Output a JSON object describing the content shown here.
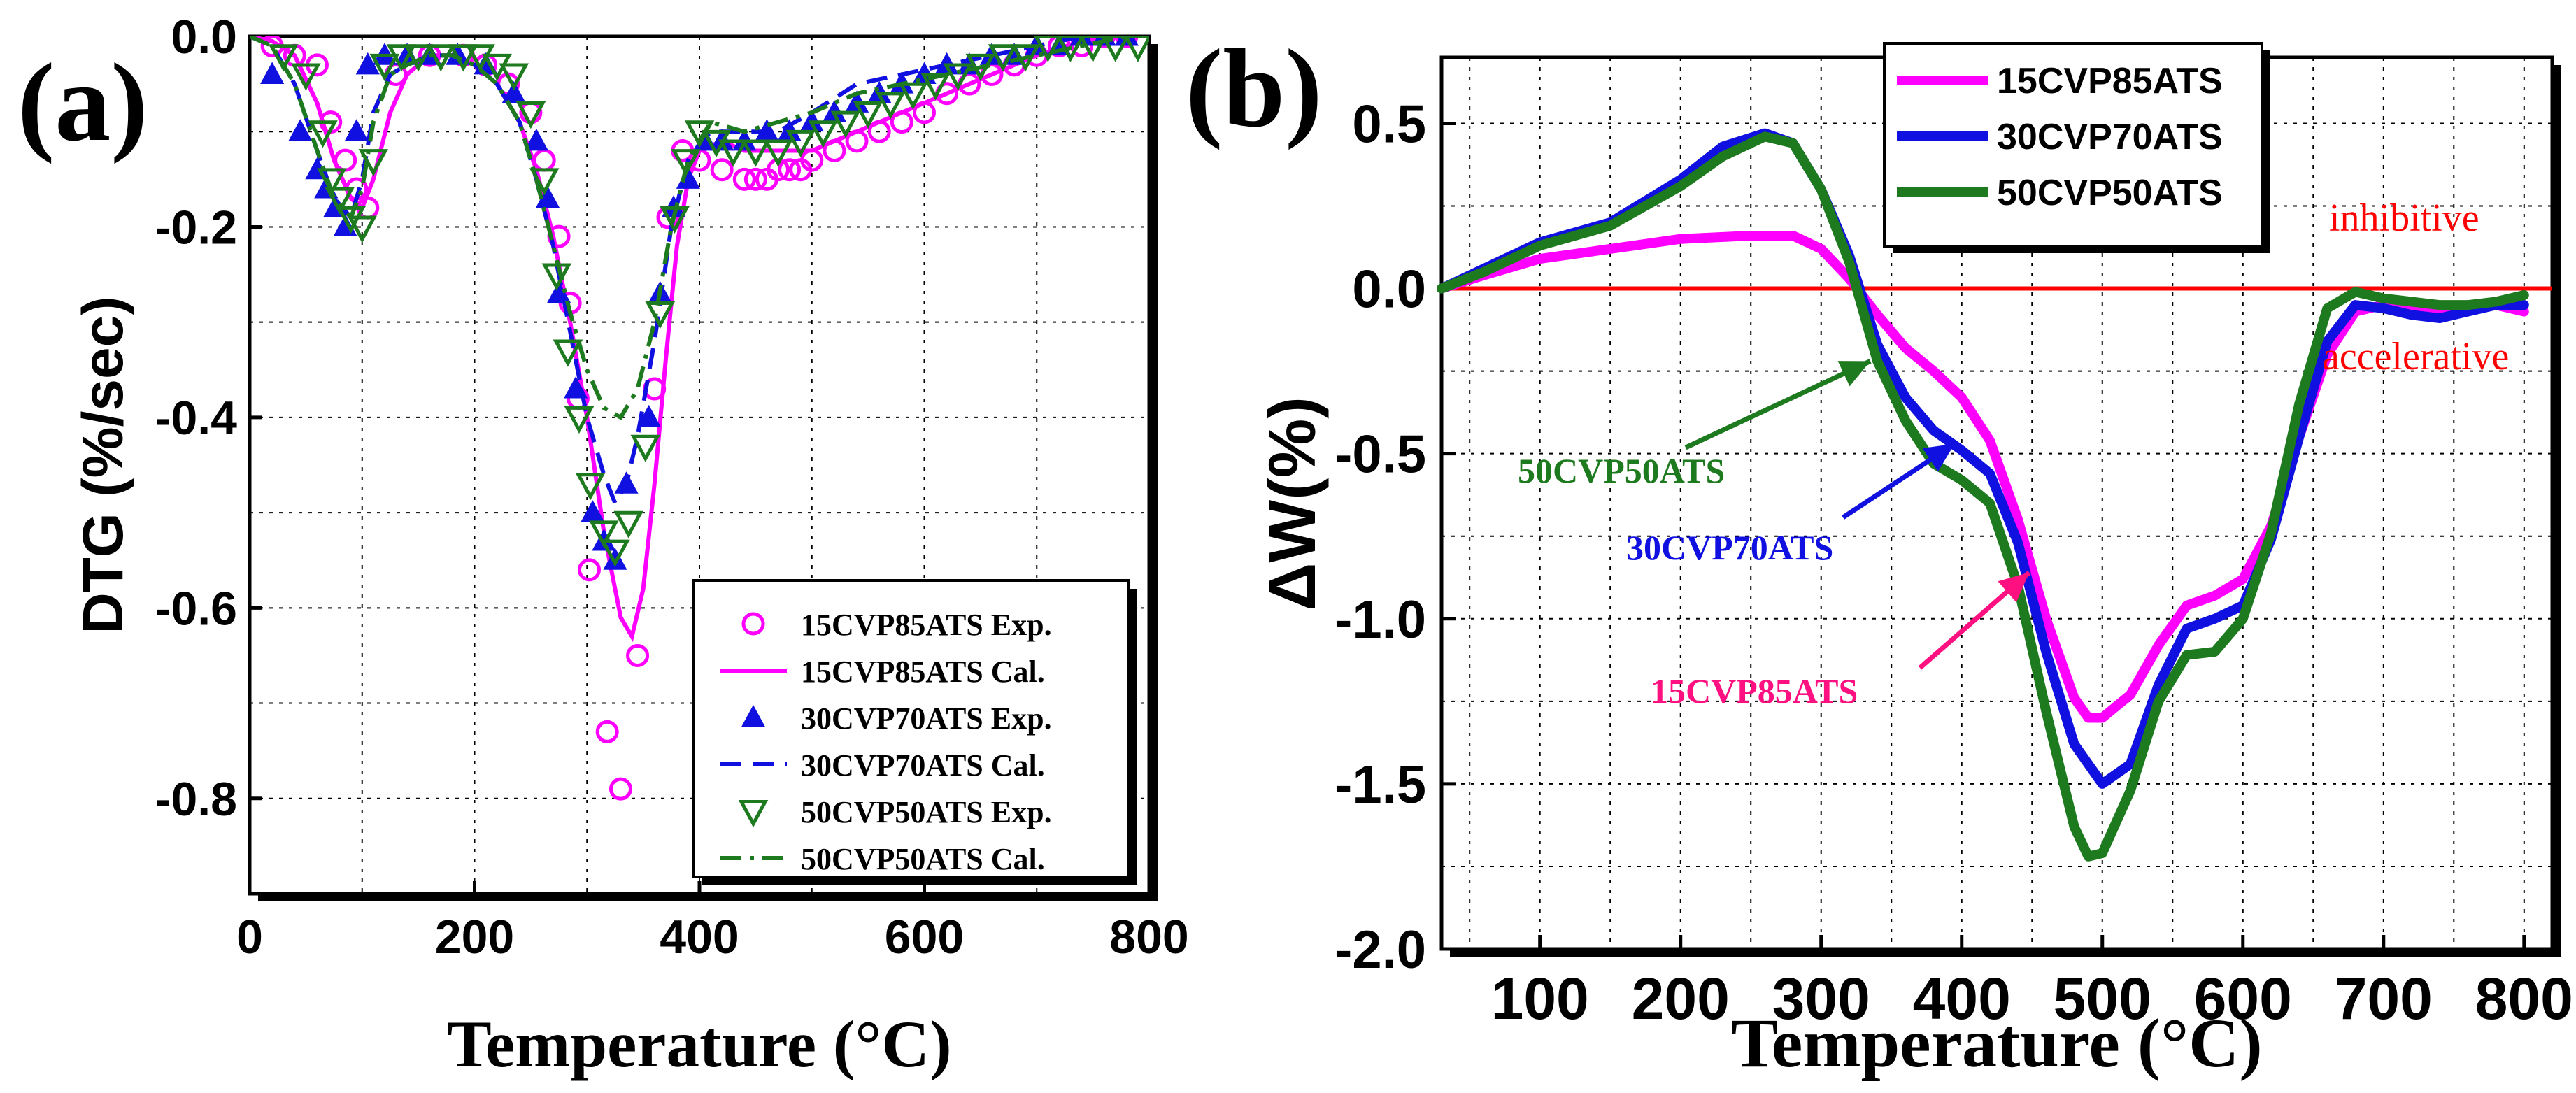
{
  "colors": {
    "magenta": "#ff00ff",
    "blue": "#1010e0",
    "green": "#1e7a1e",
    "red": "#ff0000",
    "pink": "#ff1080"
  },
  "chart_data": [
    {
      "panel_label": "(a)",
      "type": "line",
      "title": "",
      "xlabel": "Temperature (°C)",
      "ylabel": "DTG (%/sec)",
      "xlim": [
        0,
        800
      ],
      "ylim": [
        -0.9,
        0
      ],
      "xticks": [
        "0",
        "200",
        "400",
        "600",
        "800"
      ],
      "yticks": [
        "0.0",
        "-0.2",
        "-0.4",
        "-0.6",
        "-0.8"
      ],
      "legend": "bottom-right",
      "series": [
        {
          "name": "15CVP85ATS Exp.",
          "style": "open-circle",
          "color": "#ff00ff",
          "x": [
            20,
            40,
            60,
            72,
            85,
            95,
            105,
            130,
            160,
            190,
            210,
            230,
            250,
            262,
            275,
            285,
            292,
            302,
            318,
            330,
            345,
            360,
            372,
            385,
            400,
            420,
            440,
            450,
            460,
            470,
            480,
            490,
            500,
            520,
            540,
            560,
            580,
            600,
            620,
            640,
            660,
            680,
            700,
            720,
            740,
            760,
            780
          ],
          "y": [
            -0.01,
            -0.02,
            -0.03,
            -0.09,
            -0.13,
            -0.16,
            -0.18,
            -0.04,
            -0.02,
            -0.02,
            -0.03,
            -0.05,
            -0.08,
            -0.13,
            -0.21,
            -0.28,
            -0.38,
            -0.56,
            -0.73,
            -0.79,
            -0.65,
            -0.37,
            -0.19,
            -0.12,
            -0.13,
            -0.14,
            -0.15,
            -0.15,
            -0.15,
            -0.14,
            -0.14,
            -0.14,
            -0.13,
            -0.12,
            -0.11,
            -0.1,
            -0.09,
            -0.08,
            -0.06,
            -0.05,
            -0.04,
            -0.03,
            -0.02,
            -0.01,
            -0.01,
            0,
            0
          ]
        },
        {
          "name": "15CVP85ATS Cal.",
          "style": "solid",
          "color": "#ff00ff",
          "x": [
            0,
            20,
            40,
            60,
            75,
            90,
            100,
            110,
            125,
            140,
            160,
            180,
            200,
            220,
            240,
            255,
            270,
            285,
            300,
            315,
            330,
            340,
            350,
            360,
            370,
            380,
            390,
            400,
            420,
            440,
            460,
            480,
            500,
            540,
            580,
            620,
            660,
            700,
            740,
            780,
            800
          ],
          "y": [
            0,
            -0.005,
            -0.02,
            -0.07,
            -0.13,
            -0.17,
            -0.18,
            -0.15,
            -0.08,
            -0.04,
            -0.02,
            -0.02,
            -0.03,
            -0.05,
            -0.09,
            -0.14,
            -0.21,
            -0.3,
            -0.4,
            -0.52,
            -0.61,
            -0.63,
            -0.58,
            -0.47,
            -0.34,
            -0.22,
            -0.15,
            -0.12,
            -0.11,
            -0.12,
            -0.12,
            -0.12,
            -0.12,
            -0.1,
            -0.08,
            -0.06,
            -0.04,
            -0.02,
            -0.005,
            0,
            0
          ]
        },
        {
          "name": "30CVP70ATS Exp.",
          "style": "filled-triangle-up",
          "color": "#1010e0",
          "x": [
            20,
            45,
            60,
            68,
            76,
            85,
            95,
            105,
            120,
            140,
            160,
            185,
            210,
            235,
            255,
            265,
            275,
            290,
            305,
            315,
            325,
            335,
            355,
            365,
            377,
            390,
            405,
            420,
            440,
            460,
            480,
            500,
            520,
            540,
            560,
            580,
            600,
            620,
            640,
            660,
            680,
            700,
            720,
            740,
            760,
            780
          ],
          "y": [
            -0.04,
            -0.1,
            -0.14,
            -0.16,
            -0.18,
            -0.2,
            -0.1,
            -0.03,
            -0.02,
            -0.02,
            -0.02,
            -0.02,
            -0.03,
            -0.06,
            -0.11,
            -0.17,
            -0.27,
            -0.37,
            -0.5,
            -0.53,
            -0.55,
            -0.47,
            -0.4,
            -0.27,
            -0.18,
            -0.15,
            -0.11,
            -0.11,
            -0.11,
            -0.1,
            -0.1,
            -0.09,
            -0.08,
            -0.07,
            -0.06,
            -0.05,
            -0.04,
            -0.03,
            -0.03,
            -0.02,
            -0.02,
            -0.01,
            -0.01,
            0,
            0,
            0
          ]
        },
        {
          "name": "30CVP70ATS Cal.",
          "style": "dashed",
          "color": "#1010e0",
          "x": [
            0,
            20,
            40,
            60,
            75,
            90,
            100,
            110,
            125,
            140,
            160,
            180,
            200,
            220,
            240,
            255,
            270,
            285,
            300,
            315,
            325,
            335,
            345,
            360,
            375,
            390,
            410,
            440,
            470,
            500,
            540,
            580,
            620,
            660,
            700,
            740,
            780,
            800
          ],
          "y": [
            0,
            -0.01,
            -0.05,
            -0.12,
            -0.17,
            -0.19,
            -0.15,
            -0.08,
            -0.04,
            -0.03,
            -0.02,
            -0.02,
            -0.03,
            -0.05,
            -0.09,
            -0.15,
            -0.22,
            -0.31,
            -0.4,
            -0.46,
            -0.49,
            -0.47,
            -0.42,
            -0.32,
            -0.2,
            -0.13,
            -0.1,
            -0.1,
            -0.1,
            -0.08,
            -0.05,
            -0.04,
            -0.03,
            -0.02,
            -0.01,
            0,
            0,
            0
          ]
        },
        {
          "name": "50CVP50ATS Exp.",
          "style": "open-triangle-down",
          "color": "#1e7a1e",
          "x": [
            30,
            50,
            65,
            73,
            80,
            90,
            100,
            110,
            120,
            135,
            150,
            170,
            190,
            205,
            220,
            235,
            250,
            262,
            273,
            283,
            293,
            303,
            315,
            325,
            337,
            352,
            365,
            378,
            388,
            400,
            415,
            430,
            450,
            470,
            490,
            510,
            530,
            550,
            570,
            590,
            610,
            630,
            650,
            670,
            690,
            710,
            730,
            750,
            770,
            790
          ],
          "y": [
            -0.02,
            -0.04,
            -0.1,
            -0.15,
            -0.17,
            -0.19,
            -0.2,
            -0.13,
            -0.03,
            -0.02,
            -0.02,
            -0.02,
            -0.02,
            -0.02,
            -0.03,
            -0.04,
            -0.08,
            -0.15,
            -0.25,
            -0.33,
            -0.4,
            -0.47,
            -0.52,
            -0.54,
            -0.51,
            -0.43,
            -0.29,
            -0.19,
            -0.13,
            -0.1,
            -0.11,
            -0.12,
            -0.12,
            -0.12,
            -0.11,
            -0.1,
            -0.09,
            -0.08,
            -0.07,
            -0.06,
            -0.05,
            -0.04,
            -0.03,
            -0.02,
            -0.02,
            -0.01,
            -0.01,
            -0.01,
            -0.01,
            -0.01
          ]
        },
        {
          "name": "50CVP50ATS Cal.",
          "style": "dash-dot",
          "color": "#1e7a1e",
          "x": [
            0,
            20,
            40,
            60,
            75,
            90,
            100,
            110,
            125,
            140,
            160,
            180,
            200,
            220,
            240,
            255,
            270,
            285,
            300,
            315,
            330,
            345,
            360,
            375,
            390,
            410,
            440,
            470,
            500,
            540,
            580,
            620,
            660,
            700,
            740,
            780,
            800
          ],
          "y": [
            0,
            -0.01,
            -0.05,
            -0.12,
            -0.17,
            -0.19,
            -0.16,
            -0.09,
            -0.04,
            -0.03,
            -0.02,
            -0.02,
            -0.03,
            -0.05,
            -0.09,
            -0.15,
            -0.22,
            -0.29,
            -0.35,
            -0.39,
            -0.4,
            -0.37,
            -0.3,
            -0.2,
            -0.13,
            -0.09,
            -0.1,
            -0.09,
            -0.08,
            -0.06,
            -0.05,
            -0.04,
            -0.03,
            -0.02,
            -0.01,
            0,
            0
          ]
        }
      ]
    },
    {
      "panel_label": "(b)",
      "type": "line",
      "title": "",
      "xlabel": "Temperature (°C)",
      "ylabel": "ΔW(%)",
      "xlim": [
        30,
        820
      ],
      "ylim": [
        -2.0,
        0.7
      ],
      "xticks": [
        "100",
        "200",
        "300",
        "400",
        "500",
        "600",
        "700",
        "800"
      ],
      "yticks": [
        "0.5",
        "0.0",
        "-0.5",
        "-1.0",
        "-1.5",
        "-2.0"
      ],
      "legend": "top-center",
      "series": [
        {
          "name": "15CVP85ATS",
          "color": "#ff00ff",
          "x": [
            30,
            60,
            100,
            150,
            200,
            250,
            280,
            300,
            320,
            340,
            360,
            380,
            400,
            420,
            440,
            460,
            480,
            490,
            500,
            520,
            540,
            560,
            580,
            600,
            620,
            640,
            660,
            680,
            700,
            720,
            740,
            760,
            780,
            800
          ],
          "y": [
            0,
            0.04,
            0.09,
            0.12,
            0.15,
            0.16,
            0.16,
            0.12,
            0.03,
            -0.08,
            -0.18,
            -0.25,
            -0.33,
            -0.46,
            -0.7,
            -1.0,
            -1.24,
            -1.3,
            -1.3,
            -1.23,
            -1.08,
            -0.96,
            -0.93,
            -0.88,
            -0.72,
            -0.45,
            -0.2,
            -0.07,
            -0.05,
            -0.06,
            -0.07,
            -0.06,
            -0.05,
            -0.07
          ]
        },
        {
          "name": "30CVP70ATS",
          "color": "#1010e0",
          "x": [
            30,
            60,
            100,
            150,
            200,
            230,
            260,
            280,
            300,
            320,
            340,
            360,
            380,
            400,
            420,
            440,
            460,
            480,
            500,
            520,
            540,
            560,
            580,
            600,
            620,
            640,
            660,
            680,
            700,
            720,
            740,
            760,
            780,
            800
          ],
          "y": [
            0,
            0.06,
            0.14,
            0.2,
            0.33,
            0.43,
            0.47,
            0.44,
            0.3,
            0.1,
            -0.17,
            -0.33,
            -0.43,
            -0.49,
            -0.56,
            -0.77,
            -1.1,
            -1.38,
            -1.5,
            -1.44,
            -1.2,
            -1.03,
            -1.0,
            -0.96,
            -0.76,
            -0.45,
            -0.16,
            -0.05,
            -0.06,
            -0.08,
            -0.09,
            -0.07,
            -0.05,
            -0.05
          ]
        },
        {
          "name": "50CVP50ATS",
          "color": "#1e7a1e",
          "x": [
            30,
            60,
            100,
            150,
            200,
            230,
            260,
            280,
            300,
            320,
            340,
            360,
            380,
            400,
            420,
            440,
            460,
            480,
            490,
            500,
            520,
            540,
            560,
            580,
            600,
            620,
            640,
            660,
            680,
            700,
            720,
            740,
            760,
            780,
            800
          ],
          "y": [
            0,
            0.05,
            0.13,
            0.19,
            0.31,
            0.4,
            0.46,
            0.44,
            0.3,
            0.08,
            -0.22,
            -0.4,
            -0.53,
            -0.58,
            -0.65,
            -0.9,
            -1.28,
            -1.63,
            -1.72,
            -1.71,
            -1.52,
            -1.25,
            -1.11,
            -1.1,
            -1.0,
            -0.74,
            -0.35,
            -0.06,
            -0.01,
            -0.03,
            -0.04,
            -0.05,
            -0.05,
            -0.04,
            -0.02
          ]
        }
      ],
      "reference_line": {
        "y": 0,
        "color": "#ff0000"
      },
      "annotations": [
        {
          "text": "inhibitive",
          "color": "#ff0000"
        },
        {
          "text": "accelerative",
          "color": "#ff0000"
        },
        {
          "text": "50CVP50ATS",
          "color": "#1e7a1e",
          "arrow_to": [
            335,
            -0.22
          ]
        },
        {
          "text": "30CVP70ATS",
          "color": "#1010e0",
          "arrow_to": [
            395,
            -0.47
          ]
        },
        {
          "text": "15CVP85ATS",
          "color": "#ff1080",
          "arrow_to": [
            448,
            -0.86
          ]
        }
      ]
    }
  ]
}
